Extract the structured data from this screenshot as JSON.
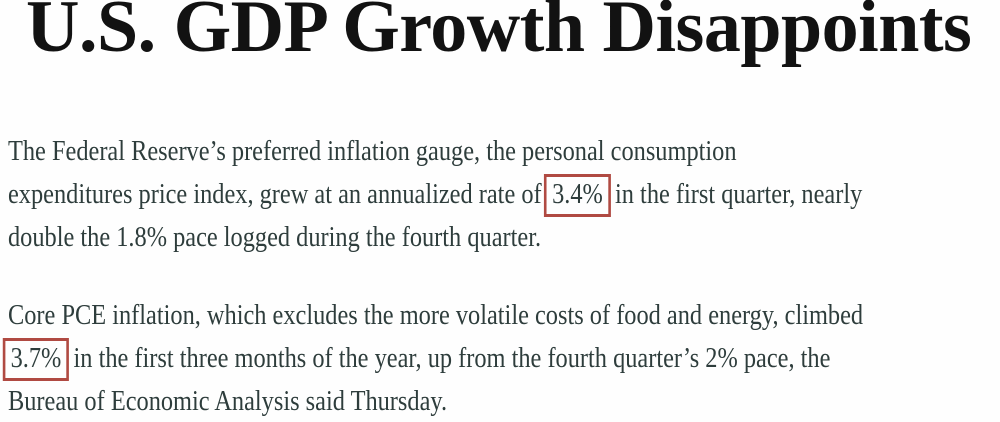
{
  "article": {
    "headline": "U.S. GDP Growth Disappoints",
    "colors": {
      "headline_text": "#121212",
      "body_text": "#2e3d3c",
      "highlight_box_border": "#b04a42",
      "background": "#fefefe"
    },
    "paragraph1": {
      "line1": "The Federal Reserve’s preferred inflation gauge, the personal consumption",
      "line2_pre": "expenditures price index, grew at an annualized rate of",
      "line2_highlight": "3.4%",
      "line2_post": "in the first quarter, nearly",
      "line3": "double the 1.8% pace logged during the fourth quarter."
    },
    "paragraph2": {
      "line1": "Core PCE inflation, which excludes the more volatile costs of food and energy, climbed",
      "line2_highlight": "3.7%",
      "line2_post": "in the first three months of the year, up from the fourth quarter’s 2% pace, the",
      "line3": "Bureau of Economic Analysis said Thursday."
    }
  }
}
